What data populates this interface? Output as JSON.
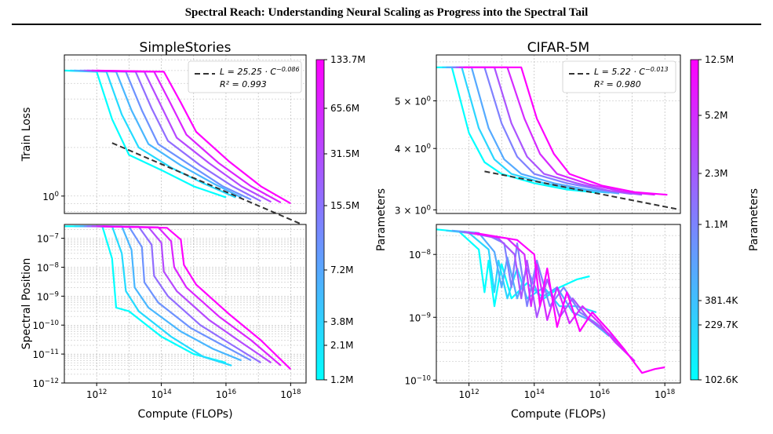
{
  "page": {
    "running_title": "Spectral Reach: Understanding Neural Scaling as Progress into the Spectral Tail"
  },
  "figure": {
    "colormap": [
      "#00ffff",
      "#ff00ff"
    ],
    "line_count": 8,
    "panels": [
      {
        "title": "SimpleStories",
        "xlabel": "Compute (FLOPs)",
        "x_ticks": [
          "10^12",
          "10^14",
          "10^16",
          "10^18"
        ],
        "top": {
          "ylabel": "Train Loss",
          "y_ticks": [
            "10^0"
          ],
          "fit": {
            "label_a": "L = 25.25 · C",
            "label_exp": "−0.086",
            "r2": "R² = 0.993"
          }
        },
        "bottom": {
          "ylabel": "Spectral Position",
          "y_ticks": [
            "10^−7",
            "10^−8",
            "10^−9",
            "10^−10",
            "10^−11",
            "10^−12"
          ]
        },
        "colorbar": {
          "label": "Parameters",
          "ticks": [
            "133.7M",
            "65.6M",
            "31.5M",
            "15.5M",
            "7.2M",
            "3.8M",
            "2.1M",
            "1.2M"
          ]
        }
      },
      {
        "title": "CIFAR-5M",
        "xlabel": "Compute (FLOPs)",
        "x_ticks": [
          "10^12",
          "10^14",
          "10^16",
          "10^18"
        ],
        "top": {
          "ylabel": "",
          "y_ticks": [
            "5 × 10^0",
            "4 × 10^0",
            "3 × 10^0"
          ],
          "fit": {
            "label_a": "L = 5.22 · C",
            "label_exp": "−0.013",
            "r2": "R² = 0.980"
          }
        },
        "bottom": {
          "ylabel": "",
          "y_ticks": [
            "10^−8",
            "10^−9",
            "10^−10"
          ]
        },
        "colorbar": {
          "label": "Parameters",
          "ticks": [
            "12.5M",
            "5.2M",
            "2.3M",
            "1.1M",
            "381.4K",
            "229.7K",
            "102.6K"
          ]
        }
      }
    ]
  },
  "chart_data": [
    {
      "type": "line",
      "title": "SimpleStories",
      "panel": "top",
      "xlabel": "Compute (FLOPs)",
      "ylabel": "Train Loss",
      "x_scale": "log",
      "y_scale": "log",
      "xlim": [
        100000000000.0,
        3e+18
      ],
      "ylim": [
        0.78,
        7.5
      ],
      "legend": "top-right",
      "fit": {
        "a": 25.25,
        "b": -0.086,
        "r2": 0.993
      },
      "series": [
        {
          "params": "1.2M",
          "x": [
            100000000000.0,
            1000000000000.0,
            3000000000000.0,
            10000000000000.0,
            100000000000000.0,
            1000000000000000.0,
            1e+16
          ],
          "y": [
            6.0,
            5.9,
            3.0,
            1.8,
            1.45,
            1.15,
            0.98
          ]
        },
        {
          "params": "2.1M",
          "x": [
            150000000000.0,
            2000000000000.0,
            6000000000000.0,
            20000000000000.0,
            200000000000000.0,
            2000000000000000.0,
            2e+16
          ],
          "y": [
            6.0,
            5.9,
            3.2,
            2.0,
            1.5,
            1.2,
            0.98
          ]
        },
        {
          "params": "3.8M",
          "x": [
            200000000000.0,
            4000000000000.0,
            12000000000000.0,
            40000000000000.0,
            400000000000000.0,
            4000000000000000.0,
            3e+16
          ],
          "y": [
            6.0,
            5.9,
            3.4,
            2.1,
            1.55,
            1.2,
            0.98
          ]
        },
        {
          "params": "7.2M",
          "x": [
            300000000000.0,
            8000000000000.0,
            25000000000000.0,
            80000000000000.0,
            800000000000000.0,
            8000000000000000.0,
            6e+16
          ],
          "y": [
            6.0,
            5.9,
            3.4,
            2.1,
            1.55,
            1.15,
            0.95
          ]
        },
        {
          "params": "15.5M",
          "x": [
            400000000000.0,
            16000000000000.0,
            50000000000000.0,
            160000000000000.0,
            1600000000000000.0,
            1.6e+16,
            1.2e+17
          ],
          "y": [
            6.0,
            5.9,
            3.5,
            2.2,
            1.55,
            1.15,
            0.93
          ]
        },
        {
          "params": "31.5M",
          "x": [
            500000000000.0,
            30000000000000.0,
            100000000000000.0,
            300000000000000.0,
            3000000000000000.0,
            3e+16,
            2.5e+17
          ],
          "y": [
            6.0,
            5.9,
            3.6,
            2.3,
            1.6,
            1.15,
            0.92
          ]
        },
        {
          "params": "65.6M",
          "x": [
            700000000000.0,
            60000000000000.0,
            200000000000000.0,
            600000000000000.0,
            6000000000000000.0,
            6e+16,
            5e+17
          ],
          "y": [
            6.0,
            5.9,
            3.7,
            2.4,
            1.6,
            1.15,
            0.91
          ]
        },
        {
          "params": "133.7M",
          "x": [
            1000000000000.0,
            120000000000000.0,
            400000000000000.0,
            1200000000000000.0,
            1.2e+16,
            1.2e+17,
            1e+18
          ],
          "y": [
            6.0,
            5.9,
            3.8,
            2.5,
            1.65,
            1.15,
            0.9
          ]
        }
      ]
    },
    {
      "type": "line",
      "title": "SimpleStories",
      "panel": "bottom",
      "xlabel": "Compute (FLOPs)",
      "ylabel": "Spectral Position",
      "x_scale": "log",
      "y_scale": "log",
      "xlim": [
        100000000000.0,
        3e+18
      ],
      "ylim": [
        1e-12,
        3e-07
      ],
      "series": [
        {
          "params": "1.2M",
          "x": [
            100000000000.0,
            1500000000000.0,
            3000000000000.0,
            4000000000000.0,
            10000000000000.0,
            100000000000000.0,
            1000000000000000.0,
            1e+16
          ],
          "y": [
            2.6e-07,
            2.6e-07,
            2e-08,
            4e-10,
            3e-10,
            4e-11,
            1e-11,
            5e-12
          ]
        },
        {
          "params": "2.1M",
          "x": [
            200000000000.0,
            3000000000000.0,
            6000000000000.0,
            8000000000000.0,
            20000000000000.0,
            200000000000000.0,
            2000000000000000.0,
            1.5e+16
          ],
          "y": [
            2.6e-07,
            2.6e-07,
            3e-08,
            1.5e-09,
            3e-10,
            4e-11,
            8e-12,
            4e-12
          ]
        },
        {
          "params": "3.8M",
          "x": [
            300000000000.0,
            6000000000000.0,
            12000000000000.0,
            15000000000000.0,
            40000000000000.0,
            400000000000000.0,
            4000000000000000.0,
            3e+16
          ],
          "y": [
            2.6e-07,
            2.6e-07,
            4e-08,
            2e-09,
            4e-10,
            6e-11,
            1.5e-11,
            6e-12
          ]
        },
        {
          "params": "7.2M",
          "x": [
            400000000000.0,
            10000000000000.0,
            25000000000000.0,
            30000000000000.0,
            80000000000000.0,
            800000000000000.0,
            8000000000000000.0,
            6e+16
          ],
          "y": [
            2.6e-07,
            2.5e-07,
            5e-08,
            3e-09,
            6e-10,
            8e-11,
            2e-11,
            6e-12
          ]
        },
        {
          "params": "15.5M",
          "x": [
            500000000000.0,
            20000000000000.0,
            50000000000000.0,
            60000000000000.0,
            160000000000000.0,
            1600000000000000.0,
            1.6e+16,
            1.2e+17
          ],
          "y": [
            2.6e-07,
            2.5e-07,
            6e-08,
            5e-09,
            1e-09,
            1e-10,
            2e-11,
            5e-12
          ]
        },
        {
          "params": "31.5M",
          "x": [
            700000000000.0,
            40000000000000.0,
            100000000000000.0,
            120000000000000.0,
            300000000000000.0,
            3000000000000000.0,
            3e+16,
            2.5e+17
          ],
          "y": [
            2.6e-07,
            2.4e-07,
            7e-08,
            7e-09,
            1.5e-09,
            1.5e-10,
            2.5e-11,
            5e-12
          ]
        },
        {
          "params": "65.6M",
          "x": [
            1000000000000.0,
            80000000000000.0,
            200000000000000.0,
            250000000000000.0,
            600000000000000.0,
            6000000000000000.0,
            6e+16,
            5e+17
          ],
          "y": [
            2.6e-07,
            2.4e-07,
            8e-08,
            1e-08,
            2e-09,
            2e-10,
            3e-11,
            4e-12
          ]
        },
        {
          "params": "133.7M",
          "x": [
            1500000000000.0,
            150000000000000.0,
            400000000000000.0,
            500000000000000.0,
            1200000000000000.0,
            1.2e+16,
            1.2e+17,
            1e+18
          ],
          "y": [
            2.6e-07,
            2.3e-07,
            9e-08,
            1.2e-08,
            2.5e-09,
            2.5e-10,
            3e-11,
            3e-12
          ]
        }
      ]
    },
    {
      "type": "line",
      "title": "CIFAR-5M",
      "panel": "top",
      "xlabel": "Compute (FLOPs)",
      "ylabel": "",
      "x_scale": "log",
      "y_scale": "log",
      "xlim": [
        100000000000.0,
        3e+18
      ],
      "ylim": [
        2.95,
        6.2
      ],
      "legend": "top-right",
      "fit": {
        "a": 5.22,
        "b": -0.013,
        "r2": 0.98
      },
      "series": [
        {
          "params": "102.6K",
          "x": [
            100000000000.0,
            300000000000.0,
            1000000000000.0,
            3000000000000.0,
            10000000000000.0,
            100000000000000.0,
            1000000000000000.0,
            1e+16
          ],
          "y": [
            5.85,
            5.85,
            4.3,
            3.75,
            3.55,
            3.4,
            3.3,
            3.25
          ]
        },
        {
          "params": "229.7K",
          "x": [
            150000000000.0,
            600000000000.0,
            2000000000000.0,
            6000000000000.0,
            20000000000000.0,
            200000000000000.0,
            2000000000000000.0,
            2e+16
          ],
          "y": [
            5.85,
            5.85,
            4.4,
            3.8,
            3.55,
            3.4,
            3.3,
            3.25
          ]
        },
        {
          "params": "381.4K",
          "x": [
            200000000000.0,
            1200000000000.0,
            4000000000000.0,
            12000000000000.0,
            40000000000000.0,
            400000000000000.0,
            4000000000000000.0,
            4e+16
          ],
          "y": [
            5.85,
            5.85,
            4.4,
            3.8,
            3.55,
            3.4,
            3.3,
            3.24
          ]
        },
        {
          "params": "1.1M",
          "x": [
            300000000000.0,
            3000000000000.0,
            10000000000000.0,
            30000000000000.0,
            100000000000000.0,
            1000000000000000.0,
            1e+16,
            1e+17
          ],
          "y": [
            5.85,
            5.85,
            4.5,
            3.85,
            3.55,
            3.4,
            3.3,
            3.23
          ]
        },
        {
          "params": "2.3M",
          "x": [
            400000000000.0,
            6000000000000.0,
            20000000000000.0,
            60000000000000.0,
            200000000000000.0,
            2000000000000000.0,
            2e+16,
            2e+17
          ],
          "y": [
            5.85,
            5.85,
            4.5,
            3.85,
            3.55,
            3.4,
            3.28,
            3.22
          ]
        },
        {
          "params": "5.2M",
          "x": [
            500000000000.0,
            15000000000000.0,
            50000000000000.0,
            150000000000000.0,
            500000000000000.0,
            5000000000000000.0,
            5e+16,
            5e+17
          ],
          "y": [
            5.85,
            5.85,
            4.6,
            3.9,
            3.55,
            3.38,
            3.27,
            3.22
          ]
        },
        {
          "params": "12.5M",
          "x": [
            700000000000.0,
            40000000000000.0,
            120000000000000.0,
            400000000000000.0,
            1200000000000000.0,
            1.2e+16,
            1.2e+17,
            1.2e+18
          ],
          "y": [
            5.85,
            5.85,
            4.6,
            3.9,
            3.55,
            3.36,
            3.26,
            3.22
          ]
        }
      ]
    },
    {
      "type": "line",
      "title": "CIFAR-5M",
      "panel": "bottom",
      "xlabel": "Compute (FLOPs)",
      "ylabel": "",
      "x_scale": "log",
      "y_scale": "log",
      "xlim": [
        100000000000.0,
        3e+18
      ],
      "ylim": [
        9e-11,
        3e-08
      ],
      "series": [
        {
          "params": "102.6K",
          "x": [
            100000000000.0,
            500000000000.0,
            2000000000000.0,
            3000000000000.0,
            4000000000000.0,
            6000000000000.0,
            10000000000000.0,
            20000000000000.0,
            60000000000000.0,
            200000000000000.0,
            600000000000000.0,
            2000000000000000.0,
            5000000000000000.0
          ],
          "y": [
            2.5e-08,
            2.3e-08,
            1.2e-08,
            2.5e-09,
            8e-09,
            1.5e-09,
            7e-09,
            2e-09,
            3.5e-09,
            2e-09,
            3e-09,
            4e-09,
            4.5e-09
          ]
        },
        {
          "params": "229.7K",
          "x": [
            200000000000.0,
            1000000000000.0,
            4000000000000.0,
            6000000000000.0,
            8000000000000.0,
            15000000000000.0,
            30000000000000.0,
            60000000000000.0,
            200000000000000.0,
            600000000000000.0,
            2000000000000000.0,
            8000000000000000.0
          ],
          "y": [
            2.4e-08,
            2.2e-08,
            1.2e-08,
            2.5e-09,
            8e-09,
            2e-09,
            6e-09,
            2e-09,
            3e-09,
            1.5e-09,
            1.5e-09,
            1.2e-09
          ]
        },
        {
          "params": "381.4K",
          "x": [
            300000000000.0,
            2000000000000.0,
            6000000000000.0,
            10000000000000.0,
            15000000000000.0,
            30000000000000.0,
            60000000000000.0,
            150000000000000.0,
            500000000000000.0,
            1500000000000000.0,
            5000000000000000.0,
            2e+16
          ],
          "y": [
            2.4e-08,
            2.2e-08,
            1.1e-08,
            3e-09,
            9e-09,
            2e-09,
            6e-09,
            2e-09,
            3e-09,
            1.2e-09,
            9e-10,
            5e-10
          ]
        },
        {
          "params": "1.1M",
          "x": [
            500000000000.0,
            4000000000000.0,
            12000000000000.0,
            20000000000000.0,
            30000000000000.0,
            60000000000000.0,
            120000000000000.0,
            300000000000000.0,
            800000000000000.0,
            2500000000000000.0,
            8000000000000000.0,
            3e+16
          ],
          "y": [
            2.3e-08,
            2e-08,
            1.5e-08,
            3e-09,
            1.5e-08,
            1.5e-09,
            8e-09,
            1.5e-09,
            3e-09,
            1.2e-09,
            8e-10,
            4.5e-10
          ]
        },
        {
          "params": "2.3M",
          "x": [
            700000000000.0,
            8000000000000.0,
            25000000000000.0,
            40000000000000.0,
            60000000000000.0,
            120000000000000.0,
            250000000000000.0,
            600000000000000.0,
            1500000000000000.0,
            5000000000000000.0,
            1.5e+16,
            6e+16
          ],
          "y": [
            2.3e-08,
            1.8e-08,
            1e-08,
            2e-09,
            8e-09,
            1e-09,
            4e-09,
            1e-09,
            2e-09,
            9e-10,
            6e-10,
            3e-10
          ]
        },
        {
          "params": "5.2M",
          "x": [
            1000000000000.0,
            15000000000000.0,
            50000000000000.0,
            80000000000000.0,
            120000000000000.0,
            250000000000000.0,
            500000000000000.0,
            1200000000000000.0,
            3000000000000000.0,
            1e+16,
            3e+16,
            1.2e+17
          ],
          "y": [
            2.2e-08,
            1.8e-08,
            1e-08,
            1.5e-09,
            7e-09,
            9e-10,
            3e-09,
            8e-10,
            1.5e-09,
            8e-10,
            4e-10,
            2e-10
          ]
        },
        {
          "params": "12.5M",
          "x": [
            1500000000000.0,
            30000000000000.0,
            100000000000000.0,
            150000000000000.0,
            250000000000000.0,
            500000000000000.0,
            1000000000000000.0,
            2500000000000000.0,
            6000000000000000.0,
            2e+16,
            6e+16,
            2e+17,
            5e+17,
            1e+18
          ],
          "y": [
            2.2e-08,
            1.7e-08,
            1e-08,
            1.5e-09,
            6e-09,
            7e-10,
            2.5e-09,
            6e-10,
            1.2e-09,
            6e-10,
            3e-10,
            1.3e-10,
            1.5e-10,
            1.6e-10
          ]
        }
      ]
    }
  ]
}
